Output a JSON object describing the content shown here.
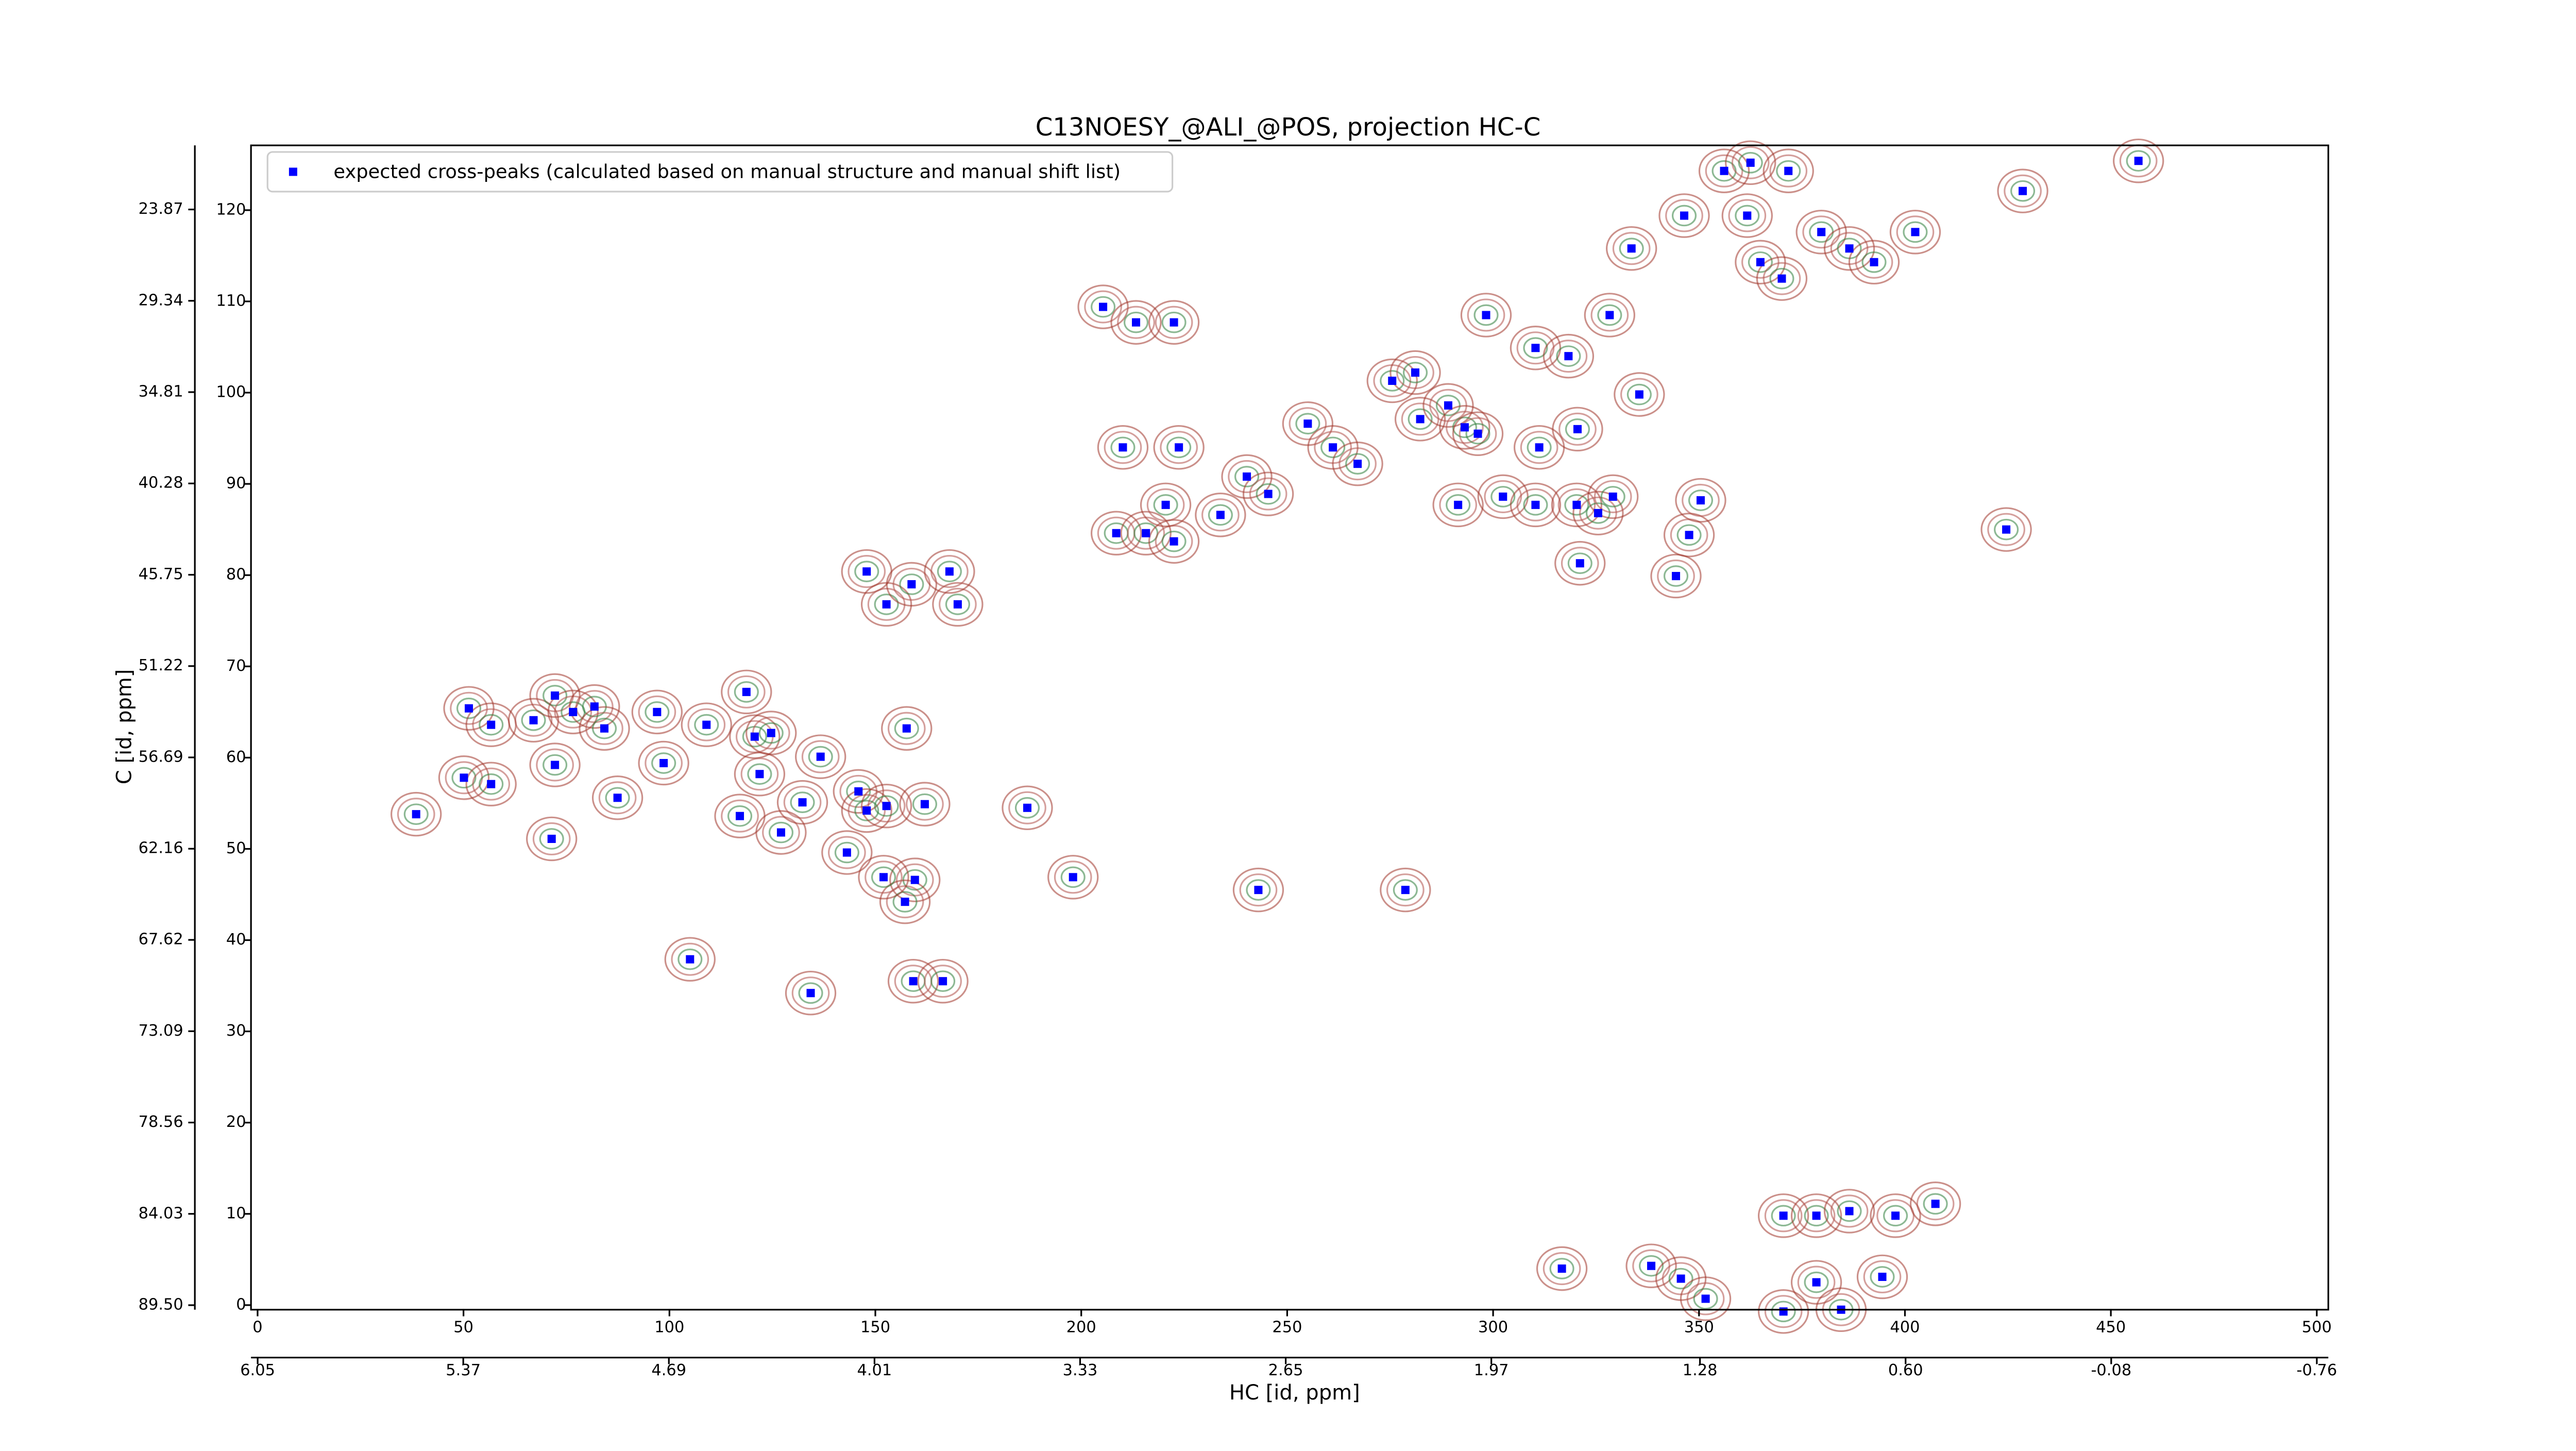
{
  "chart_data": {
    "type": "scatter",
    "title": "C13NOESY_@ALI_@POS, projection HC-C",
    "xlabel": "HC [id, ppm]",
    "ylabel": "C [id, ppm]",
    "xlim": [
      -1.6,
      502.8
    ],
    "xticks": [
      0,
      50,
      100,
      150,
      200,
      250,
      300,
      350,
      400,
      450,
      500
    ],
    "x2lim": [
      6.072,
      -0.798
    ],
    "x2ticks": [
      6.05,
      5.37,
      4.69,
      4.01,
      3.33,
      2.65,
      1.97,
      1.28,
      {
        "value": 0.6,
        "label": "0.60"
      },
      -0.08,
      -0.76
    ],
    "ylim": [
      -0.5,
      127.1
    ],
    "yticks": [
      0,
      10,
      20,
      30,
      40,
      50,
      60,
      70,
      80,
      90,
      100,
      110,
      120
    ],
    "y2lim": [
      89.77,
      20.03
    ],
    "y2ticks": [
      {
        "value": 89.5,
        "label": "89.50"
      },
      84.03,
      78.56,
      73.09,
      67.62,
      62.16,
      56.69,
      51.22,
      45.75,
      40.28,
      34.81,
      29.34,
      23.87
    ],
    "legend": "upper left",
    "grid": false,
    "series": [
      {
        "name": "expected cross-peaks (calculated based on manual structure and manual shift list)",
        "color": "#0000ff",
        "x": [
          38.5,
          50.1,
          56.7,
          51.3,
          56.7,
          67,
          72.2,
          72.2,
          71.4,
          76.6,
          81.8,
          84.2,
          87.4,
          97,
          98.6,
          105,
          109,
          118.7,
          120.7,
          124.7,
          121.9,
          117.1,
          127.1,
          132.3,
          136.7,
          134.3,
          145.9,
          143.1,
          147.9,
          152.7,
          157.6,
          159.6,
          162,
          157.2,
          152,
          159.2,
          166.4,
          147.9,
          152.7,
          158.8,
          170,
          168,
          186.9,
          198,
          243,
          278.7,
          205.3,
          213.3,
          222.5,
          210.1,
          223.7,
          208.5,
          215.7,
          222.5,
          220.5,
          233.8,
          240.2,
          245.4,
          255,
          261.1,
          267.1,
          275.5,
          281.1,
          282.3,
          289.1,
          293.1,
          296.3,
          311.2,
          320.5,
          298.3,
          310.3,
          318.3,
          328.3,
          335.5,
          291.5,
          302.4,
          310.3,
          320.3,
          325.5,
          329.1,
          347.6,
          350.4,
          321.1,
          344.4,
          333.6,
          346.4,
          361.7,
          364.9,
          356.1,
          362.5,
          371.7,
          379.7,
          386.5,
          392.5,
          402.5,
          370.1,
          428.6,
          456.7,
          424.6,
          316.7,
          338.4,
          345.6,
          351.6,
          370.5,
          378.5,
          386.5,
          397.7,
          407.4,
          378.5,
          394.5,
          370.5,
          384.5
        ],
        "values": [
          53.8,
          57.8,
          57.1,
          65.4,
          63.6,
          64.1,
          66.8,
          59.2,
          51.1,
          65,
          65.6,
          63.2,
          55.6,
          65,
          59.4,
          37.9,
          63.6,
          67.2,
          62.3,
          62.7,
          58.2,
          53.6,
          51.8,
          55.1,
          60.1,
          34.2,
          56.3,
          49.6,
          54.2,
          54.7,
          63.2,
          46.6,
          54.9,
          44.2,
          46.9,
          35.5,
          35.5,
          80.4,
          76.8,
          79,
          76.8,
          80.4,
          54.5,
          46.9,
          45.5,
          45.5,
          109.4,
          107.7,
          107.7,
          94,
          94,
          84.6,
          84.6,
          83.7,
          87.7,
          86.6,
          90.8,
          88.9,
          96.6,
          94,
          92.2,
          101.3,
          102.2,
          97.1,
          98.6,
          96.2,
          95.5,
          94,
          96,
          108.5,
          104.9,
          104,
          108.5,
          99.8,
          87.7,
          88.6,
          87.7,
          87.7,
          86.8,
          88.6,
          84.4,
          88.2,
          81.3,
          79.9,
          115.8,
          119.4,
          119.4,
          114.3,
          124.3,
          125.2,
          124.3,
          117.6,
          115.8,
          114.3,
          117.6,
          112.5,
          122.1,
          125.4,
          85,
          4,
          4.3,
          2.9,
          0.7,
          9.8,
          9.8,
          10.3,
          9.8,
          11.1,
          2.5,
          3.1,
          -0.7,
          -0.5
        ]
      }
    ]
  }
}
